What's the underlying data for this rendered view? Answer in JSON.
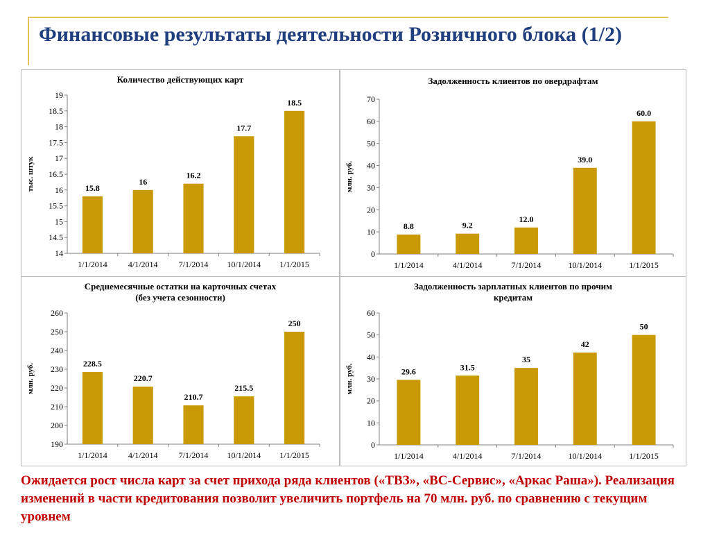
{
  "slide": {
    "title": "Финансовые результаты деятельности Розничного блока (1/2)",
    "footer": "Ожидается рост числа карт за счет прихода ряда клиентов («ТВЗ», «ВС-Сервис», «Аркас Раша»). Реализация изменений в части кредитования позволит увеличить портфель на 70 млн. руб. по сравнению с текущим уровнем"
  },
  "colors": {
    "bar": "#c99a06",
    "title": "#1f3f7f",
    "footer": "#c00000",
    "frame": "#e5c25a"
  },
  "chart_data": [
    {
      "type": "bar",
      "title": "Количество действующих карт",
      "ylabel": "тыс. штук",
      "categories": [
        "1/1/2014",
        "4/1/2014",
        "7/1/2014",
        "10/1/2014",
        "1/1/2015"
      ],
      "values": [
        15.8,
        16,
        16.2,
        17.7,
        18.5
      ],
      "value_labels": [
        "15.8",
        "16",
        "16.2",
        "17.7",
        "18.5"
      ],
      "ylim": [
        14,
        19
      ],
      "yticks": [
        "14",
        "14.5",
        "15",
        "15.5",
        "16",
        "16.5",
        "17",
        "17.5",
        "18",
        "18.5",
        "19"
      ],
      "grid": false
    },
    {
      "type": "bar",
      "title": "Задолженность клиентов по овердрафтам",
      "ylabel": "млн. руб.",
      "categories": [
        "1/1/2014",
        "4/1/2014",
        "7/1/2014",
        "10/1/2014",
        "1/1/2015"
      ],
      "values": [
        8.8,
        9.2,
        12.0,
        39.0,
        60.0
      ],
      "value_labels": [
        "8.8",
        "9.2",
        "12.0",
        "39.0",
        "60.0"
      ],
      "ylim": [
        0,
        70
      ],
      "yticks": [
        "0",
        "10",
        "20",
        "30",
        "40",
        "50",
        "60",
        "70"
      ],
      "grid": false
    },
    {
      "type": "bar",
      "title": "Среднемесячные остатки на карточных счетах (без учета сезонности)",
      "title_lines": [
        "Среднемесячные остатки на карточных счетах",
        "(без учета сезонности)"
      ],
      "ylabel": "млн. руб.",
      "categories": [
        "1/1/2014",
        "4/1/2014",
        "7/1/2014",
        "10/1/2014",
        "1/1/2015"
      ],
      "values": [
        228.5,
        220.7,
        210.7,
        215.5,
        250
      ],
      "value_labels": [
        "228.5",
        "220.7",
        "210.7",
        "215.5",
        "250"
      ],
      "ylim": [
        190,
        260
      ],
      "yticks": [
        "190",
        "200",
        "210",
        "220",
        "230",
        "240",
        "250",
        "260"
      ],
      "grid": false
    },
    {
      "type": "bar",
      "title": "Задолженность зарплатных клиентов по прочим кредитам",
      "title_lines": [
        "Задолженность зарплатных клиентов по прочим",
        "кредитам"
      ],
      "ylabel": "млн. руб.",
      "categories": [
        "1/1/2014",
        "4/1/2014",
        "7/1/2014",
        "10/1/2014",
        "1/1/2015"
      ],
      "values": [
        29.6,
        31.5,
        35,
        42,
        50
      ],
      "value_labels": [
        "29.6",
        "31.5",
        "35",
        "42",
        "50"
      ],
      "ylim": [
        0,
        60
      ],
      "yticks": [
        "0",
        "10",
        "20",
        "30",
        "40",
        "50",
        "60"
      ],
      "grid": false
    }
  ]
}
